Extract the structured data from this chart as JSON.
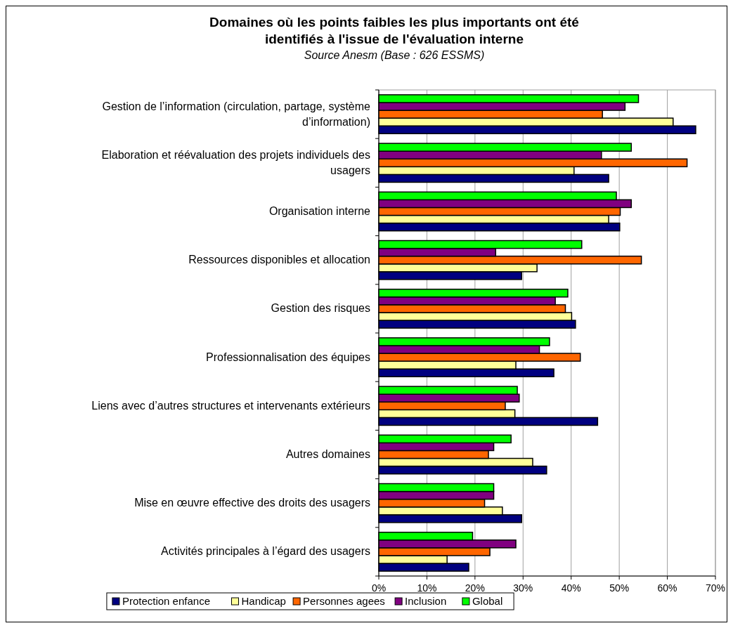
{
  "chart_data": {
    "type": "bar",
    "orientation": "horizontal",
    "title": "Domaines où les points faibles les plus importants ont été identifiés à l'issue de l'évaluation interne",
    "subtitle": "Source Anesm (Base : 626 ESSMS)",
    "categories": [
      "Gestion de l’information (circulation, partage, système d’information)",
      "Elaboration et réévaluation des projets individuels des usagers",
      "Organisation interne",
      "Ressources disponibles et allocation",
      "Gestion des risques",
      "Professionnalisation des équipes",
      "Liens avec d’autres structures et intervenants extérieurs",
      "Autres domaines",
      "Mise en œuvre effective des droits des usagers",
      "Activités principales à l’égard des usagers"
    ],
    "series": [
      {
        "name": "Protection enfance",
        "color": "#000080",
        "values": [
          65.9,
          47.8,
          50.1,
          29.7,
          40.9,
          36.4,
          45.5,
          34.9,
          29.7,
          18.7
        ]
      },
      {
        "name": "Handicap",
        "color": "#ffff99",
        "values": [
          61.2,
          40.6,
          47.8,
          32.9,
          40.1,
          28.5,
          28.3,
          32.0,
          25.7,
          14.2
        ]
      },
      {
        "name": "Personnes agees",
        "color": "#ff6600",
        "values": [
          46.5,
          64.1,
          50.2,
          54.6,
          38.8,
          41.9,
          26.3,
          22.8,
          22.0,
          23.1
        ]
      },
      {
        "name": "Inclusion",
        "color": "#800080",
        "values": [
          51.2,
          46.3,
          52.5,
          24.3,
          36.7,
          33.4,
          29.2,
          23.9,
          23.9,
          28.5
        ]
      },
      {
        "name": "Global",
        "color": "#00ff00",
        "values": [
          54.0,
          52.5,
          49.4,
          42.2,
          39.3,
          35.5,
          28.8,
          27.5,
          23.9,
          19.5
        ]
      }
    ],
    "xlim": [
      0,
      70
    ],
    "xticks": [
      {
        "value": 0,
        "label": "0%"
      },
      {
        "value": 10,
        "label": "10%"
      },
      {
        "value": 20,
        "label": "20%"
      },
      {
        "value": 30,
        "label": "30%"
      },
      {
        "value": 40,
        "label": "40%"
      },
      {
        "value": 50,
        "label": "50%"
      },
      {
        "value": 60,
        "label": "60%"
      },
      {
        "value": 70,
        "label": "70%"
      }
    ],
    "grid": "x",
    "legend": "bottom"
  }
}
